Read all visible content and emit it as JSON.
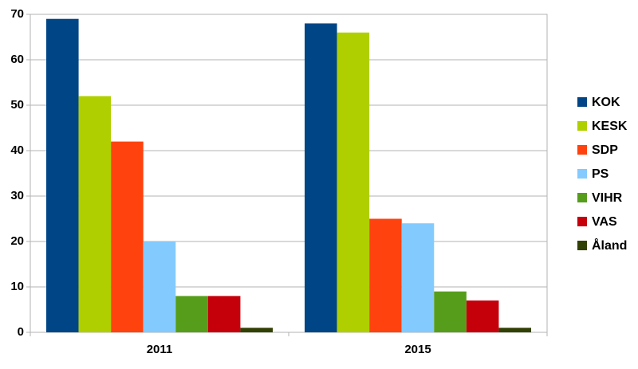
{
  "chart_data": {
    "type": "bar",
    "categories": [
      "2011",
      "2015"
    ],
    "series": [
      {
        "name": "KOK",
        "color": "#004586",
        "values": [
          69,
          68
        ]
      },
      {
        "name": "KESK",
        "color": "#b0cf00",
        "values": [
          52,
          66
        ]
      },
      {
        "name": "SDP",
        "color": "#ff420e",
        "values": [
          42,
          25
        ]
      },
      {
        "name": "PS",
        "color": "#83caff",
        "values": [
          20,
          24
        ]
      },
      {
        "name": "VIHR",
        "color": "#579d1c",
        "values": [
          8,
          9
        ]
      },
      {
        "name": "VAS",
        "color": "#c5000b",
        "values": [
          8,
          7
        ]
      },
      {
        "name": "Åland",
        "color": "#314004",
        "values": [
          1,
          1
        ]
      }
    ],
    "ylim": [
      0,
      70
    ],
    "yticks": [
      0,
      10,
      20,
      30,
      40,
      50,
      60,
      70
    ],
    "grid": true,
    "legend": "right"
  }
}
